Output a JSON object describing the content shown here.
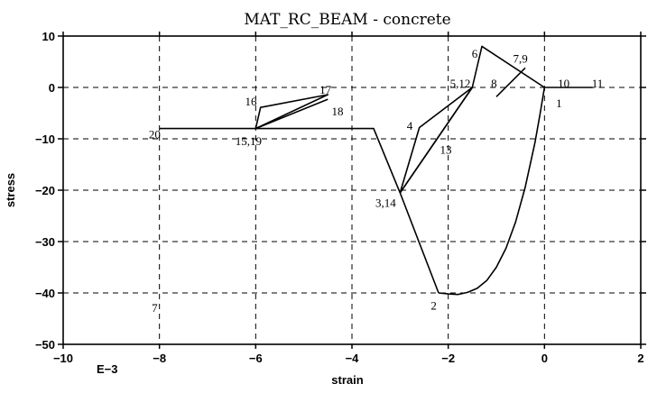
{
  "chart_data": {
    "type": "line",
    "title": "MAT_RC_BEAM - concrete",
    "xlabel": "strain",
    "ylabel": "stress",
    "x_multiplier_label": "E−3",
    "xlim": [
      -10,
      2
    ],
    "ylim": [
      -50,
      10
    ],
    "x_ticks": [
      -10,
      -8,
      -6,
      -4,
      -2,
      0,
      2
    ],
    "x_tick_labels": [
      "−10",
      "−8",
      "−6",
      "−4",
      "−2",
      "0",
      "2"
    ],
    "y_ticks": [
      -50,
      -40,
      -30,
      -20,
      -10,
      0,
      10
    ],
    "y_tick_labels": [
      "−50",
      "−40",
      "−30",
      "−20",
      "−10",
      "0",
      "10"
    ],
    "grid": true,
    "segments": [
      {
        "name": "",
        "x": [
          1.0,
          0.0
        ],
        "y": [
          0,
          0
        ]
      },
      {
        "name": "",
        "x": [
          0.0,
          -0.1,
          -0.2,
          -0.4,
          -0.6,
          -0.8,
          -1.0,
          -1.2,
          -1.4,
          -1.6,
          -1.8,
          -2.0,
          -2.2
        ],
        "y": [
          0,
          -5.6,
          -10.8,
          -19.4,
          -26.2,
          -31.3,
          -35.0,
          -37.6,
          -39.1,
          -39.9,
          -40.3,
          -40.2,
          -40.0
        ]
      },
      {
        "name": "",
        "x": [
          -2.2,
          -3.0
        ],
        "y": [
          -40,
          -20.5
        ]
      },
      {
        "name": "",
        "x": [
          -3.0,
          -1.5,
          -1.3,
          0.0
        ],
        "y": [
          -20.5,
          0,
          8,
          0
        ]
      },
      {
        "name": "",
        "x": [
          -3.0,
          -2.6,
          -1.5
        ],
        "y": [
          -20.5,
          -7.8,
          0
        ]
      },
      {
        "name": "",
        "x": [
          -1.5,
          -3.0
        ],
        "y": [
          0,
          -20.5
        ]
      },
      {
        "name": "",
        "x": [
          -3.0,
          -3.55,
          -6.0
        ],
        "y": [
          -20.5,
          -8.0,
          -8.0
        ]
      },
      {
        "name": "",
        "x": [
          -6.0,
          -5.9,
          -4.5,
          -6.0
        ],
        "y": [
          -8.0,
          -3.9,
          -1.4,
          -8.0
        ]
      },
      {
        "name": "",
        "x": [
          -6.0,
          -4.5
        ],
        "y": [
          -8.0,
          -2.3
        ]
      },
      {
        "name": "",
        "x": [
          -6.0,
          -8.0
        ],
        "y": [
          -8.0,
          -8.0
        ]
      },
      {
        "name": "",
        "x": [
          -1.0,
          -0.4
        ],
        "y": [
          -1.8,
          3.8
        ]
      }
    ],
    "point_labels": [
      {
        "text": "1",
        "x": 0.3,
        "y": -3.2
      },
      {
        "text": "2",
        "x": -2.3,
        "y": -42.5
      },
      {
        "text": "3,14",
        "x": -3.3,
        "y": -22.5
      },
      {
        "text": "4",
        "x": -2.8,
        "y": -7.5
      },
      {
        "text": "5,12",
        "x": -1.75,
        "y": 0.7
      },
      {
        "text": "6",
        "x": -1.45,
        "y": 6.5
      },
      {
        "text": "7,9",
        "x": -0.5,
        "y": 5.5
      },
      {
        "text": "8",
        "x": -1.05,
        "y": 0.7
      },
      {
        "text": "10",
        "x": 0.4,
        "y": 0.7
      },
      {
        "text": "11",
        "x": 1.1,
        "y": 0.7
      },
      {
        "text": "13",
        "x": -2.05,
        "y": -12.2
      },
      {
        "text": "15,19",
        "x": -6.15,
        "y": -10.5
      },
      {
        "text": "16",
        "x": -6.1,
        "y": -2.8
      },
      {
        "text": "17",
        "x": -4.55,
        "y": -0.5
      },
      {
        "text": "18",
        "x": -4.3,
        "y": -4.7
      },
      {
        "text": "20",
        "x": -8.1,
        "y": -9.2
      },
      {
        "text": "7",
        "x": -8.1,
        "y": -43.0
      }
    ]
  }
}
